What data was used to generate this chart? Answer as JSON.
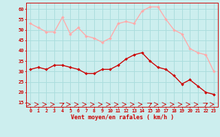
{
  "hours": [
    0,
    1,
    2,
    3,
    4,
    5,
    6,
    7,
    8,
    9,
    10,
    11,
    12,
    13,
    14,
    15,
    16,
    17,
    18,
    19,
    20,
    21,
    22,
    23
  ],
  "wind_avg": [
    31,
    32,
    31,
    33,
    33,
    32,
    31,
    29,
    29,
    31,
    31,
    33,
    36,
    38,
    39,
    35,
    32,
    31,
    28,
    24,
    26,
    23,
    20,
    19
  ],
  "wind_gust": [
    53,
    51,
    49,
    49,
    56,
    48,
    51,
    47,
    46,
    44,
    46,
    53,
    54,
    53,
    59,
    61,
    61,
    55,
    50,
    48,
    41,
    39,
    38,
    30
  ],
  "wind_dir_angle": [
    0,
    0,
    0,
    0,
    45,
    0,
    0,
    0,
    0,
    0,
    0,
    0,
    0,
    0,
    0,
    45,
    0,
    0,
    0,
    0,
    0,
    0,
    45,
    0
  ],
  "avg_color": "#cc0000",
  "gust_color": "#ffaaaa",
  "bg_color": "#cceeee",
  "grid_color": "#aadddd",
  "xlabel": "Vent moyen/en rafales ( km/h )",
  "xlabel_color": "#cc0000",
  "tick_color": "#cc0000",
  "ylim": [
    13,
    63
  ],
  "yticks": [
    15,
    20,
    25,
    30,
    35,
    40,
    45,
    50,
    55,
    60
  ],
  "xticks": [
    0,
    1,
    2,
    3,
    4,
    5,
    6,
    7,
    8,
    9,
    10,
    11,
    12,
    13,
    14,
    15,
    16,
    17,
    18,
    19,
    20,
    21,
    22,
    23
  ]
}
